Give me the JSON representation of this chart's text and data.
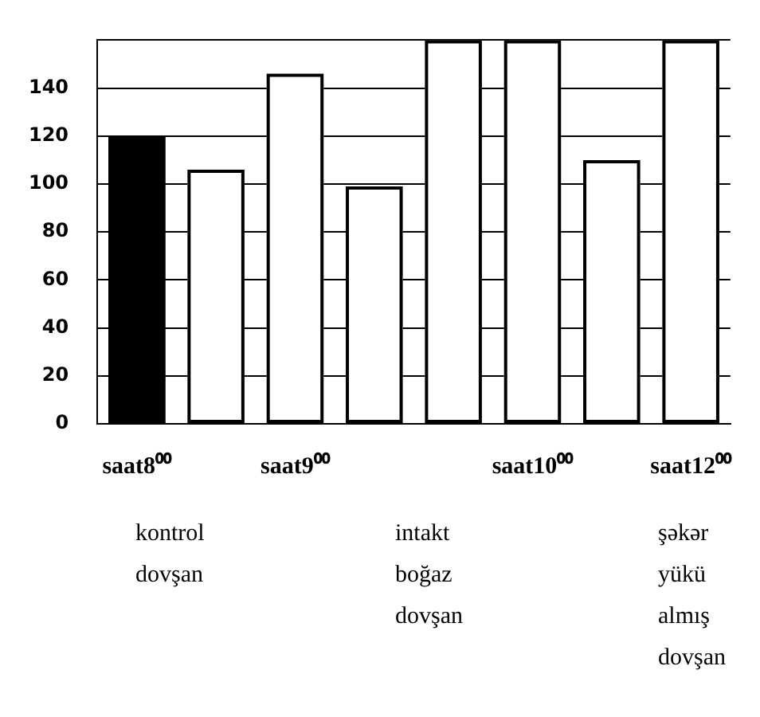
{
  "chart_data": {
    "type": "bar",
    "categories": [
      "saat8⁰⁰",
      null,
      "saat9⁰⁰",
      null,
      null,
      "saat10⁰⁰",
      null,
      "saat12⁰⁰"
    ],
    "values": [
      120,
      106,
      146,
      99,
      160,
      160,
      110,
      160
    ],
    "colors": [
      "#000000",
      "#ffffff",
      "#ffffff",
      "#ffffff",
      "#ffffff",
      "#ffffff",
      "#ffffff",
      "#ffffff"
    ],
    "ylim": [
      0,
      160
    ],
    "yticks": [
      0,
      20,
      40,
      60,
      80,
      100,
      120,
      140,
      {
        "value": 160,
        "label": null
      }
    ],
    "grid": "y",
    "legend": false,
    "annotations": [
      "kontrol\ndovşan",
      "intakt\nboğaz\ndovşan",
      "şəkər\nyükü\nalmış\ndovşan"
    ]
  }
}
